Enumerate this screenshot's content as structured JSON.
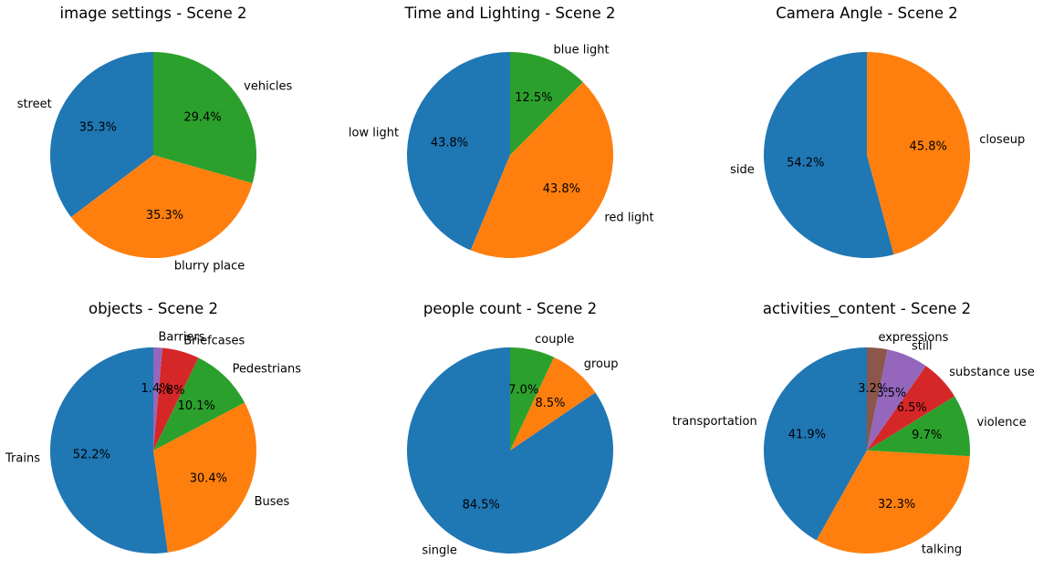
{
  "chart_data": [
    {
      "type": "pie",
      "title": "image settings - Scene 2",
      "labels": [
        "street",
        "blurry place",
        "vehicles"
      ],
      "values": [
        35.3,
        35.3,
        29.4
      ],
      "pct_labels": [
        "35.3%",
        "35.3%",
        "29.4%"
      ],
      "colors": [
        "#1f77b4",
        "#ff7f0e",
        "#2ca02c"
      ],
      "start_angle": 90,
      "direction": "counterclockwise"
    },
    {
      "type": "pie",
      "title": "Time and Lighting - Scene 2",
      "labels": [
        "low light",
        "red light",
        "blue light"
      ],
      "values": [
        43.8,
        43.8,
        12.5
      ],
      "pct_labels": [
        "43.8%",
        "43.8%",
        "12.5%"
      ],
      "colors": [
        "#1f77b4",
        "#ff7f0e",
        "#2ca02c"
      ],
      "start_angle": 90,
      "direction": "counterclockwise"
    },
    {
      "type": "pie",
      "title": "Camera Angle - Scene 2",
      "labels": [
        "side",
        "closeup"
      ],
      "values": [
        54.2,
        45.8
      ],
      "pct_labels": [
        "54.2%",
        "45.8%"
      ],
      "colors": [
        "#1f77b4",
        "#ff7f0e"
      ],
      "start_angle": 90,
      "direction": "counterclockwise"
    },
    {
      "type": "pie",
      "title": "objects - Scene 2",
      "labels": [
        "Trains",
        "Buses",
        "Pedestrians",
        "Briefcases",
        "Barriers"
      ],
      "values": [
        52.2,
        30.4,
        10.1,
        5.8,
        1.4
      ],
      "pct_labels": [
        "52.2%",
        "30.4%",
        "10.1%",
        "5.8%",
        "1.4%"
      ],
      "colors": [
        "#1f77b4",
        "#ff7f0e",
        "#2ca02c",
        "#d62728",
        "#9467bd"
      ],
      "start_angle": 90,
      "direction": "counterclockwise"
    },
    {
      "type": "pie",
      "title": "people count - Scene 2",
      "labels": [
        "single",
        "group",
        "couple"
      ],
      "values": [
        84.5,
        8.5,
        7.0
      ],
      "pct_labels": [
        "84.5%",
        "8.5%",
        "7.0%"
      ],
      "colors": [
        "#1f77b4",
        "#ff7f0e",
        "#2ca02c"
      ],
      "start_angle": 90,
      "direction": "counterclockwise"
    },
    {
      "type": "pie",
      "title": "activities_content - Scene 2",
      "labels": [
        "transportation",
        "talking",
        "violence",
        "substance use",
        "still",
        "expressions"
      ],
      "values": [
        41.9,
        32.3,
        9.7,
        6.5,
        6.5,
        3.2
      ],
      "pct_labels": [
        "41.9%",
        "32.3%",
        "9.7%",
        "6.5%",
        "6.5%",
        "3.2%"
      ],
      "colors": [
        "#1f77b4",
        "#ff7f0e",
        "#2ca02c",
        "#d62728",
        "#9467bd",
        "#8c564b"
      ],
      "start_angle": 90,
      "direction": "counterclockwise"
    }
  ]
}
